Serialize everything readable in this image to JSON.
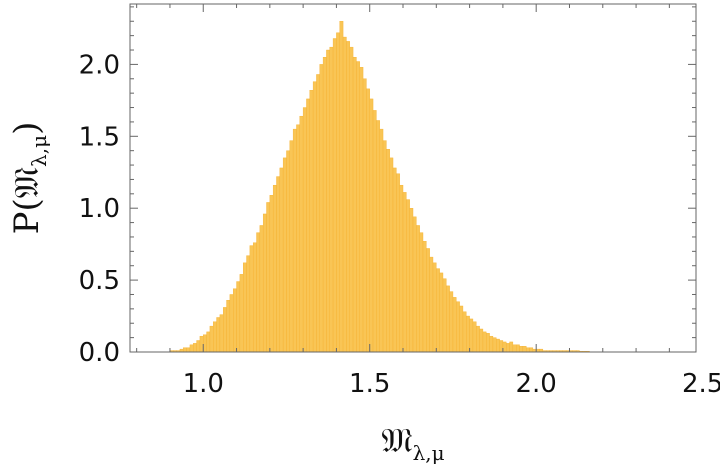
{
  "chart_data": {
    "type": "bar",
    "title": "",
    "xlabel": {
      "base": "𝔐",
      "sub": "λ,μ"
    },
    "ylabel": {
      "prefix": "P(",
      "base": "𝔐",
      "sub": "λ,μ",
      "suffix": ")"
    },
    "xlim": [
      0.78,
      2.48
    ],
    "ylim": [
      0,
      2.42
    ],
    "xticks": [
      1.0,
      1.5,
      2.0,
      2.5
    ],
    "xtick_labels": [
      "1.0",
      "1.5",
      "2.0",
      "2.5"
    ],
    "yticks": [
      0.0,
      0.5,
      1.0,
      1.5,
      2.0
    ],
    "ytick_labels": [
      "0.0",
      "0.5",
      "1.0",
      "1.5",
      "2.0"
    ],
    "grid": false,
    "frame": true,
    "bin_width": 0.01,
    "bar_color": "#F9C555",
    "bar_edge_color": "#F5B02E",
    "bins": [
      [
        0.9,
        0.01
      ],
      [
        0.91,
        0.01
      ],
      [
        0.92,
        0.01
      ],
      [
        0.93,
        0.02
      ],
      [
        0.94,
        0.03
      ],
      [
        0.95,
        0.03
      ],
      [
        0.96,
        0.05
      ],
      [
        0.97,
        0.06
      ],
      [
        0.98,
        0.08
      ],
      [
        0.99,
        0.11
      ],
      [
        1.0,
        0.12
      ],
      [
        1.01,
        0.14
      ],
      [
        1.02,
        0.18
      ],
      [
        1.03,
        0.21
      ],
      [
        1.04,
        0.24
      ],
      [
        1.05,
        0.26
      ],
      [
        1.06,
        0.31
      ],
      [
        1.07,
        0.36
      ],
      [
        1.08,
        0.4
      ],
      [
        1.09,
        0.44
      ],
      [
        1.1,
        0.49
      ],
      [
        1.11,
        0.54
      ],
      [
        1.12,
        0.62
      ],
      [
        1.13,
        0.67
      ],
      [
        1.14,
        0.74
      ],
      [
        1.15,
        0.76
      ],
      [
        1.16,
        0.83
      ],
      [
        1.17,
        0.88
      ],
      [
        1.18,
        0.96
      ],
      [
        1.19,
        1.04
      ],
      [
        1.2,
        1.09
      ],
      [
        1.21,
        1.16
      ],
      [
        1.22,
        1.22
      ],
      [
        1.23,
        1.28
      ],
      [
        1.24,
        1.35
      ],
      [
        1.25,
        1.4
      ],
      [
        1.26,
        1.47
      ],
      [
        1.27,
        1.55
      ],
      [
        1.28,
        1.58
      ],
      [
        1.29,
        1.64
      ],
      [
        1.3,
        1.7
      ],
      [
        1.31,
        1.76
      ],
      [
        1.32,
        1.82
      ],
      [
        1.33,
        1.88
      ],
      [
        1.34,
        1.93
      ],
      [
        1.35,
        2.0
      ],
      [
        1.36,
        2.05
      ],
      [
        1.37,
        2.1
      ],
      [
        1.38,
        2.12
      ],
      [
        1.39,
        2.18
      ],
      [
        1.4,
        2.22
      ],
      [
        1.41,
        2.3
      ],
      [
        1.42,
        2.19
      ],
      [
        1.43,
        2.16
      ],
      [
        1.44,
        2.12
      ],
      [
        1.45,
        2.05
      ],
      [
        1.46,
        2.02
      ],
      [
        1.47,
        1.98
      ],
      [
        1.48,
        1.9
      ],
      [
        1.49,
        1.83
      ],
      [
        1.5,
        1.76
      ],
      [
        1.51,
        1.68
      ],
      [
        1.52,
        1.61
      ],
      [
        1.53,
        1.55
      ],
      [
        1.54,
        1.47
      ],
      [
        1.55,
        1.41
      ],
      [
        1.56,
        1.35
      ],
      [
        1.57,
        1.28
      ],
      [
        1.58,
        1.24
      ],
      [
        1.59,
        1.16
      ],
      [
        1.6,
        1.11
      ],
      [
        1.61,
        1.06
      ],
      [
        1.62,
        1.0
      ],
      [
        1.63,
        0.94
      ],
      [
        1.64,
        0.88
      ],
      [
        1.65,
        0.83
      ],
      [
        1.66,
        0.77
      ],
      [
        1.67,
        0.72
      ],
      [
        1.68,
        0.66
      ],
      [
        1.69,
        0.62
      ],
      [
        1.7,
        0.58
      ],
      [
        1.71,
        0.55
      ],
      [
        1.72,
        0.51
      ],
      [
        1.73,
        0.46
      ],
      [
        1.74,
        0.42
      ],
      [
        1.75,
        0.38
      ],
      [
        1.76,
        0.35
      ],
      [
        1.77,
        0.32
      ],
      [
        1.78,
        0.28
      ],
      [
        1.79,
        0.25
      ],
      [
        1.8,
        0.23
      ],
      [
        1.81,
        0.21
      ],
      [
        1.82,
        0.18
      ],
      [
        1.83,
        0.16
      ],
      [
        1.84,
        0.14
      ],
      [
        1.85,
        0.13
      ],
      [
        1.86,
        0.11
      ],
      [
        1.87,
        0.1
      ],
      [
        1.88,
        0.09
      ],
      [
        1.89,
        0.08
      ],
      [
        1.9,
        0.07
      ],
      [
        1.91,
        0.06
      ],
      [
        1.92,
        0.07
      ],
      [
        1.93,
        0.05
      ],
      [
        1.94,
        0.05
      ],
      [
        1.95,
        0.04
      ],
      [
        1.96,
        0.04
      ],
      [
        1.97,
        0.03
      ],
      [
        1.98,
        0.03
      ],
      [
        1.99,
        0.02
      ],
      [
        2.0,
        0.02
      ],
      [
        2.01,
        0.02
      ],
      [
        2.02,
        0.01
      ],
      [
        2.03,
        0.01
      ],
      [
        2.04,
        0.01
      ],
      [
        2.05,
        0.01
      ],
      [
        2.06,
        0.01
      ],
      [
        2.07,
        0.01
      ],
      [
        2.08,
        0.01
      ],
      [
        2.09,
        0.01
      ],
      [
        2.1,
        0.01
      ],
      [
        2.11,
        0.01
      ],
      [
        2.12,
        0.01
      ],
      [
        2.13,
        0.005
      ],
      [
        2.14,
        0.005
      ],
      [
        2.15,
        0.005
      ]
    ]
  }
}
